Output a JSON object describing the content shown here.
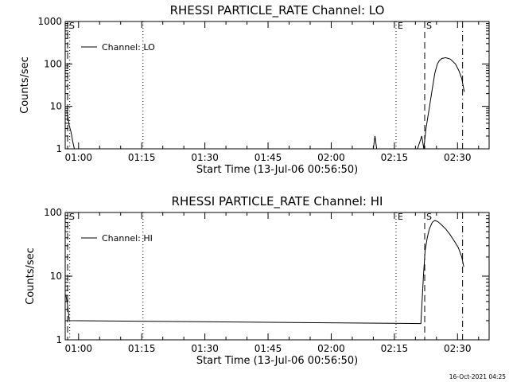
{
  "chart_data": [
    {
      "type": "line",
      "title": "RHESSI PARTICLE_RATE Channel: LO",
      "xlabel": "Start Time (13-Jul-06 00:56:50)",
      "ylabel": "Counts/sec",
      "yscale": "log",
      "ylim": [
        1,
        1000
      ],
      "xlim_min": [
        56.83,
        157.5
      ],
      "x_ticks": [
        "01:00",
        "01:15",
        "01:30",
        "01:45",
        "02:00",
        "02:15",
        "02:30"
      ],
      "x_tick_min": [
        60,
        75,
        90,
        105,
        120,
        135,
        150
      ],
      "y_ticks": [
        "1",
        "10",
        "100",
        "1000"
      ],
      "y_tick_values": [
        1,
        10,
        100,
        1000
      ],
      "legend": "top-left",
      "series": [
        {
          "name": "Channel: LO",
          "x_min": [
            57.2,
            57.8,
            58.2,
            58.6,
            59.0,
            130.0,
            130.4,
            130.8,
            140.5,
            141.5,
            142.0,
            142.5,
            143.2,
            144.1,
            144.6,
            145.2,
            145.7,
            146.3,
            147.2,
            148.3,
            149.5,
            150.3,
            151.0,
            151.6
          ],
          "y": [
            8.0,
            3.5,
            2.5,
            1.5,
            1.0,
            1.0,
            2.0,
            1.0,
            1.0,
            2.0,
            1.0,
            3.0,
            8.0,
            30.0,
            60.0,
            100.0,
            120.0,
            135.0,
            140.0,
            130.0,
            100.0,
            70.0,
            45.0,
            22.0
          ]
        }
      ],
      "markers": [
        {
          "label": "S",
          "x_min": 57.4,
          "style": "dashed"
        },
        {
          "label": "",
          "x_min": 57.9,
          "style": "dotted"
        },
        {
          "label": "",
          "x_min": 75.3,
          "style": "dotted"
        },
        {
          "label": "E",
          "x_min": 135.4,
          "style": "dotted"
        },
        {
          "label": "S",
          "x_min": 142.2,
          "style": "dashed"
        },
        {
          "label": "",
          "x_min": 151.2,
          "style": "dashdot"
        }
      ]
    },
    {
      "type": "line",
      "title": "RHESSI PARTICLE_RATE Channel: HI",
      "xlabel": "Start Time (13-Jul-06 00:56:50)",
      "ylabel": "Counts/sec",
      "yscale": "log",
      "ylim": [
        1,
        100
      ],
      "xlim_min": [
        56.83,
        157.5
      ],
      "x_ticks": [
        "01:00",
        "01:15",
        "01:30",
        "01:45",
        "02:00",
        "02:15",
        "02:30"
      ],
      "x_tick_min": [
        60,
        75,
        90,
        105,
        120,
        135,
        150
      ],
      "y_ticks": [
        "1",
        "10",
        "100"
      ],
      "y_tick_values": [
        1,
        10,
        100
      ],
      "legend": "top-left",
      "series": [
        {
          "name": "Channel: HI",
          "x_min": [
            57.0,
            57.4,
            57.8,
            141.3,
            141.9,
            142.3,
            142.8,
            143.3,
            144.0,
            144.6,
            145.3,
            146.1,
            147.2,
            148.2,
            149.3,
            150.2,
            151.0,
            151.5
          ],
          "y": [
            5.0,
            3.5,
            2.0,
            1.8,
            10.0,
            25.0,
            40.0,
            55.0,
            70.0,
            75.0,
            72.0,
            65.0,
            55.0,
            45.0,
            35.0,
            28.0,
            20.0,
            14.0
          ]
        }
      ],
      "markers": [
        {
          "label": "S",
          "x_min": 57.4,
          "style": "dashed"
        },
        {
          "label": "",
          "x_min": 57.9,
          "style": "dotted"
        },
        {
          "label": "",
          "x_min": 75.3,
          "style": "dotted"
        },
        {
          "label": "E",
          "x_min": 135.4,
          "style": "dotted"
        },
        {
          "label": "S",
          "x_min": 142.2,
          "style": "dashed"
        },
        {
          "label": "",
          "x_min": 151.2,
          "style": "dashdot"
        }
      ]
    }
  ],
  "footer": {
    "timestamp": "16-Oct-2021 04:25"
  }
}
